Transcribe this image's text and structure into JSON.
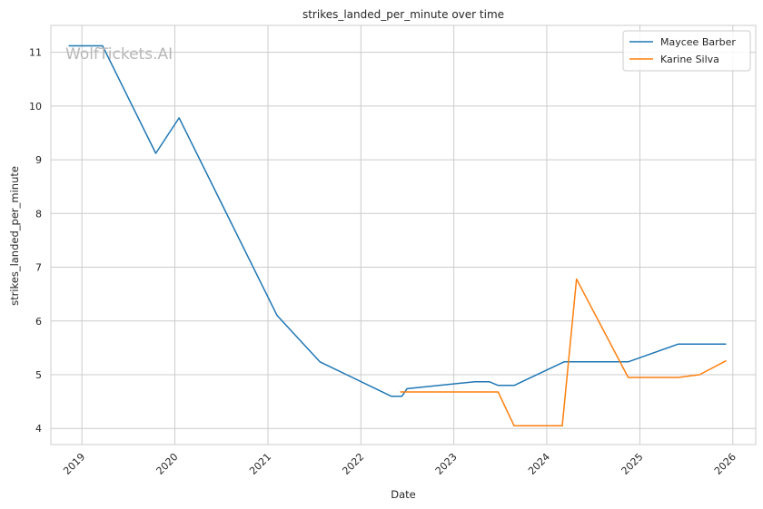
{
  "chart_data": {
    "type": "line",
    "title": "strikes_landed_per_minute over time",
    "xlabel": "Date",
    "ylabel": "strikes_landed_per_minute",
    "watermark": "WolfTickets.AI",
    "xlim": [
      "2018-09-01",
      "2026-04-01"
    ],
    "ylim": [
      3.7,
      11.5
    ],
    "x_ticks": [
      "2019-01-01",
      "2020-01-01",
      "2021-01-01",
      "2022-01-01",
      "2023-01-01",
      "2024-01-01",
      "2025-01-01",
      "2026-01-01"
    ],
    "x_tick_labels": [
      "2019",
      "2020",
      "2021",
      "2022",
      "2023",
      "2024",
      "2025",
      "2026"
    ],
    "y_ticks": [
      4,
      5,
      6,
      7,
      8,
      9,
      10,
      11
    ],
    "y_tick_labels": [
      "4",
      "5",
      "6",
      "7",
      "8",
      "9",
      "10",
      "11"
    ],
    "grid": true,
    "legend_position": "top-right",
    "series": [
      {
        "name": "Maycee Barber",
        "color": "#1f77b4",
        "points": [
          [
            "2018-11-10",
            11.12
          ],
          [
            "2019-03-23",
            11.12
          ],
          [
            "2019-10-18",
            9.12
          ],
          [
            "2020-01-18",
            9.78
          ],
          [
            "2021-02-06",
            6.1
          ],
          [
            "2021-07-24",
            5.24
          ],
          [
            "2022-04-30",
            4.6
          ],
          [
            "2022-06-11",
            4.6
          ],
          [
            "2022-07-01",
            4.74
          ],
          [
            "2023-03-25",
            4.87
          ],
          [
            "2023-05-20",
            4.87
          ],
          [
            "2023-06-24",
            4.8
          ],
          [
            "2023-08-26",
            4.8
          ],
          [
            "2024-03-09",
            5.24
          ],
          [
            "2024-11-16",
            5.24
          ],
          [
            "2025-06-01",
            5.57
          ],
          [
            "2025-12-06",
            5.57
          ]
        ]
      },
      {
        "name": "Karine Silva",
        "color": "#ff7f0e",
        "points": [
          [
            "2022-06-04",
            4.68
          ],
          [
            "2023-06-24",
            4.68
          ],
          [
            "2023-08-26",
            4.05
          ],
          [
            "2024-03-02",
            4.05
          ],
          [
            "2024-04-27",
            6.78
          ],
          [
            "2024-11-16",
            4.95
          ],
          [
            "2025-06-01",
            4.95
          ],
          [
            "2025-08-23",
            5.0
          ],
          [
            "2025-12-06",
            5.26
          ]
        ]
      }
    ]
  }
}
